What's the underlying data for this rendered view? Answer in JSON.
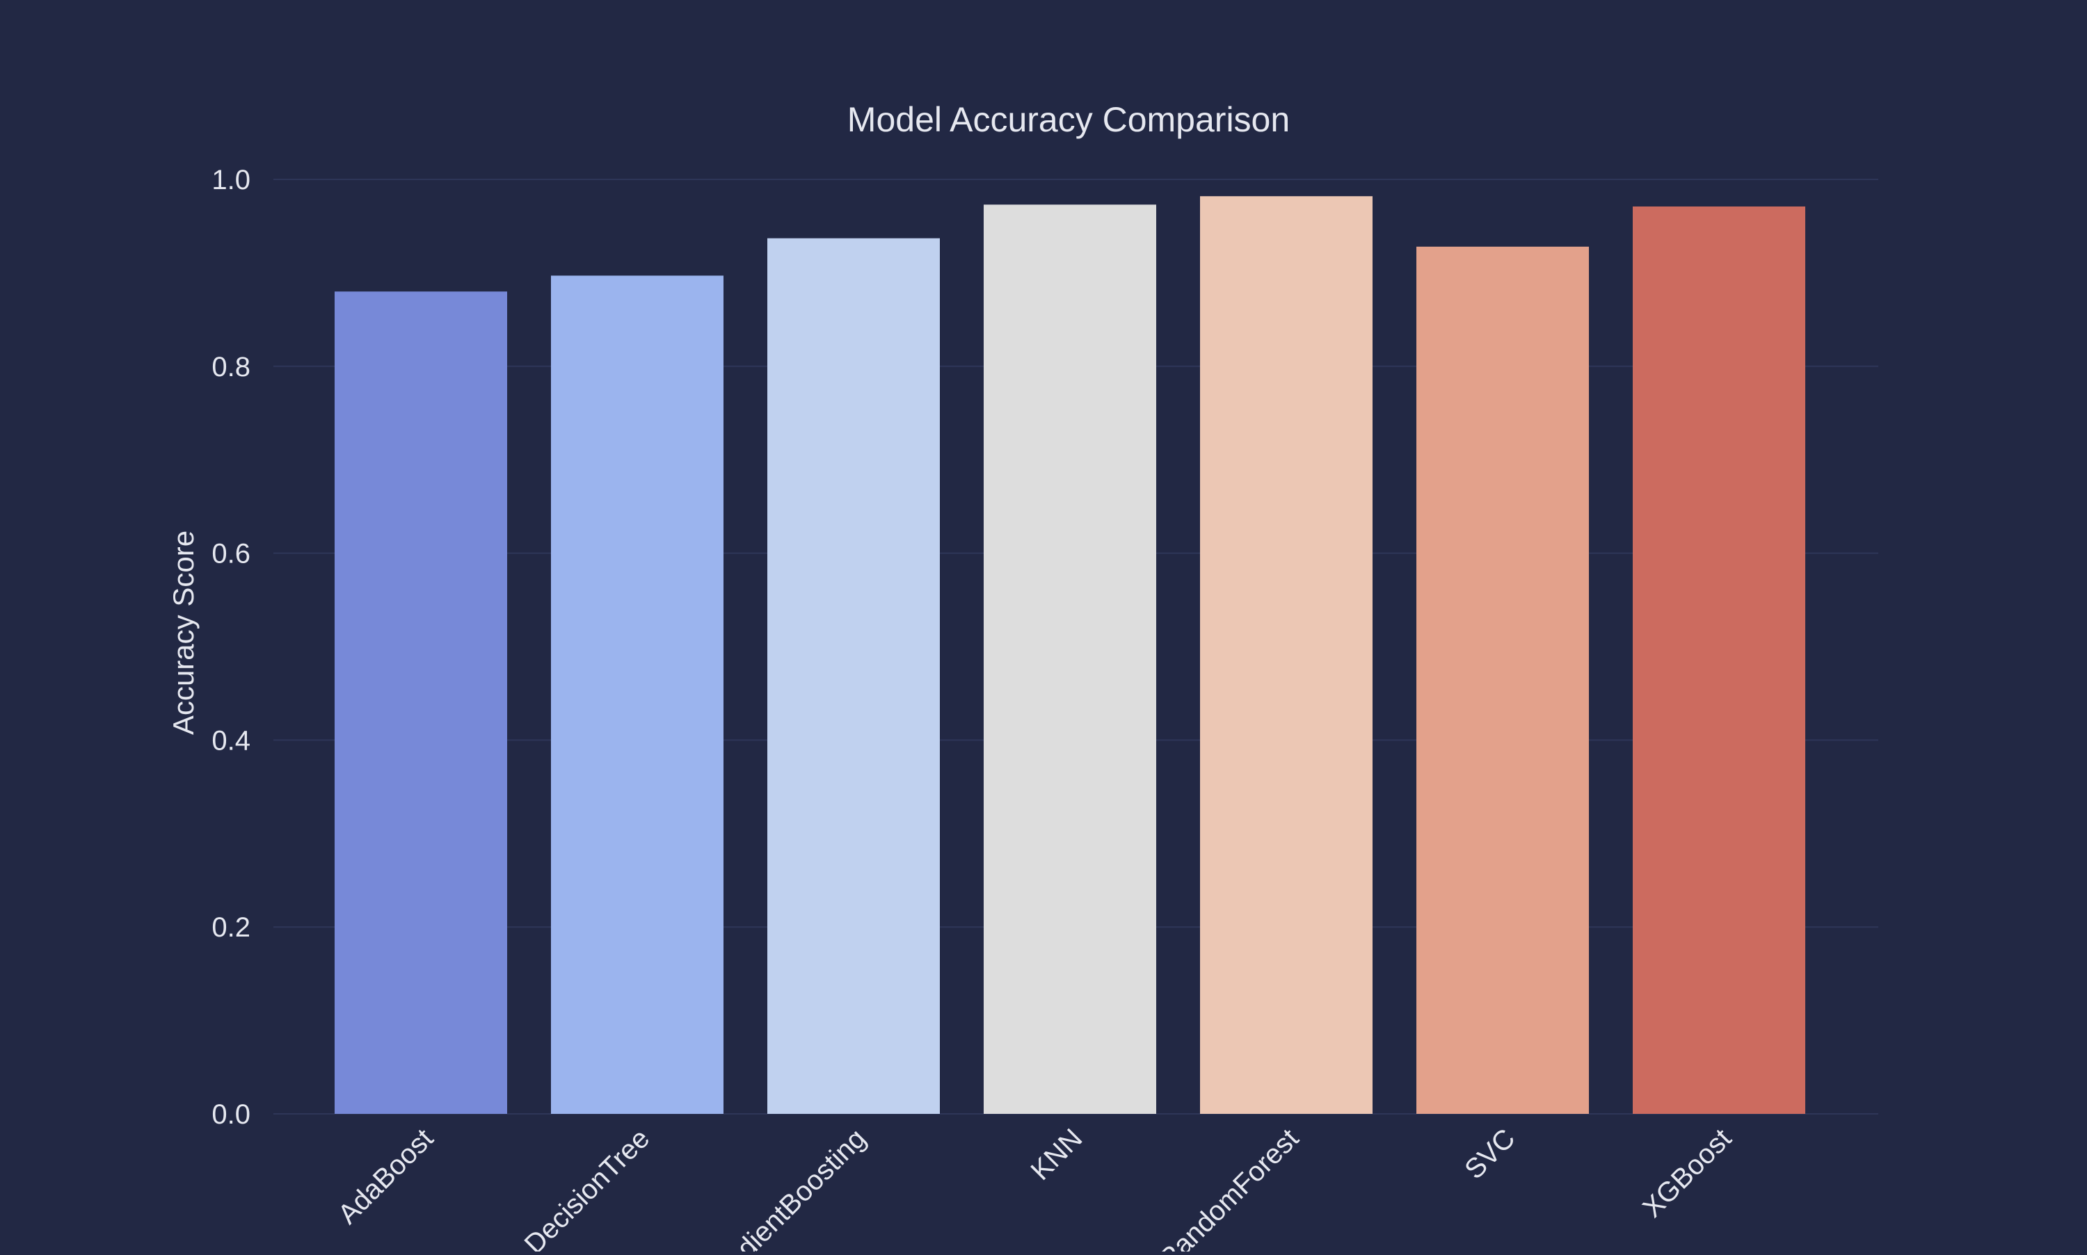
{
  "chart_data": {
    "type": "bar",
    "title": "Model Accuracy Comparison",
    "xlabel": "",
    "ylabel": "Accuracy Score",
    "categories": [
      "AdaBoost",
      "DecisionTree",
      "GradientBoosting",
      "KNN",
      "RandomForest",
      "SVC",
      "XGBoost"
    ],
    "values": [
      0.88,
      0.897,
      0.937,
      0.973,
      0.982,
      0.928,
      0.971
    ],
    "ylim": [
      0,
      1.0
    ],
    "yticks": [
      "0.0",
      "0.2",
      "0.4",
      "0.6",
      "0.8",
      "1.0"
    ],
    "grid": true,
    "legend": false,
    "colors": [
      "#7789d8",
      "#9bb4ee",
      "#c0d1ef",
      "#dddddd",
      "#ecc7b4",
      "#e3a18b",
      "#cc6b5f"
    ]
  }
}
